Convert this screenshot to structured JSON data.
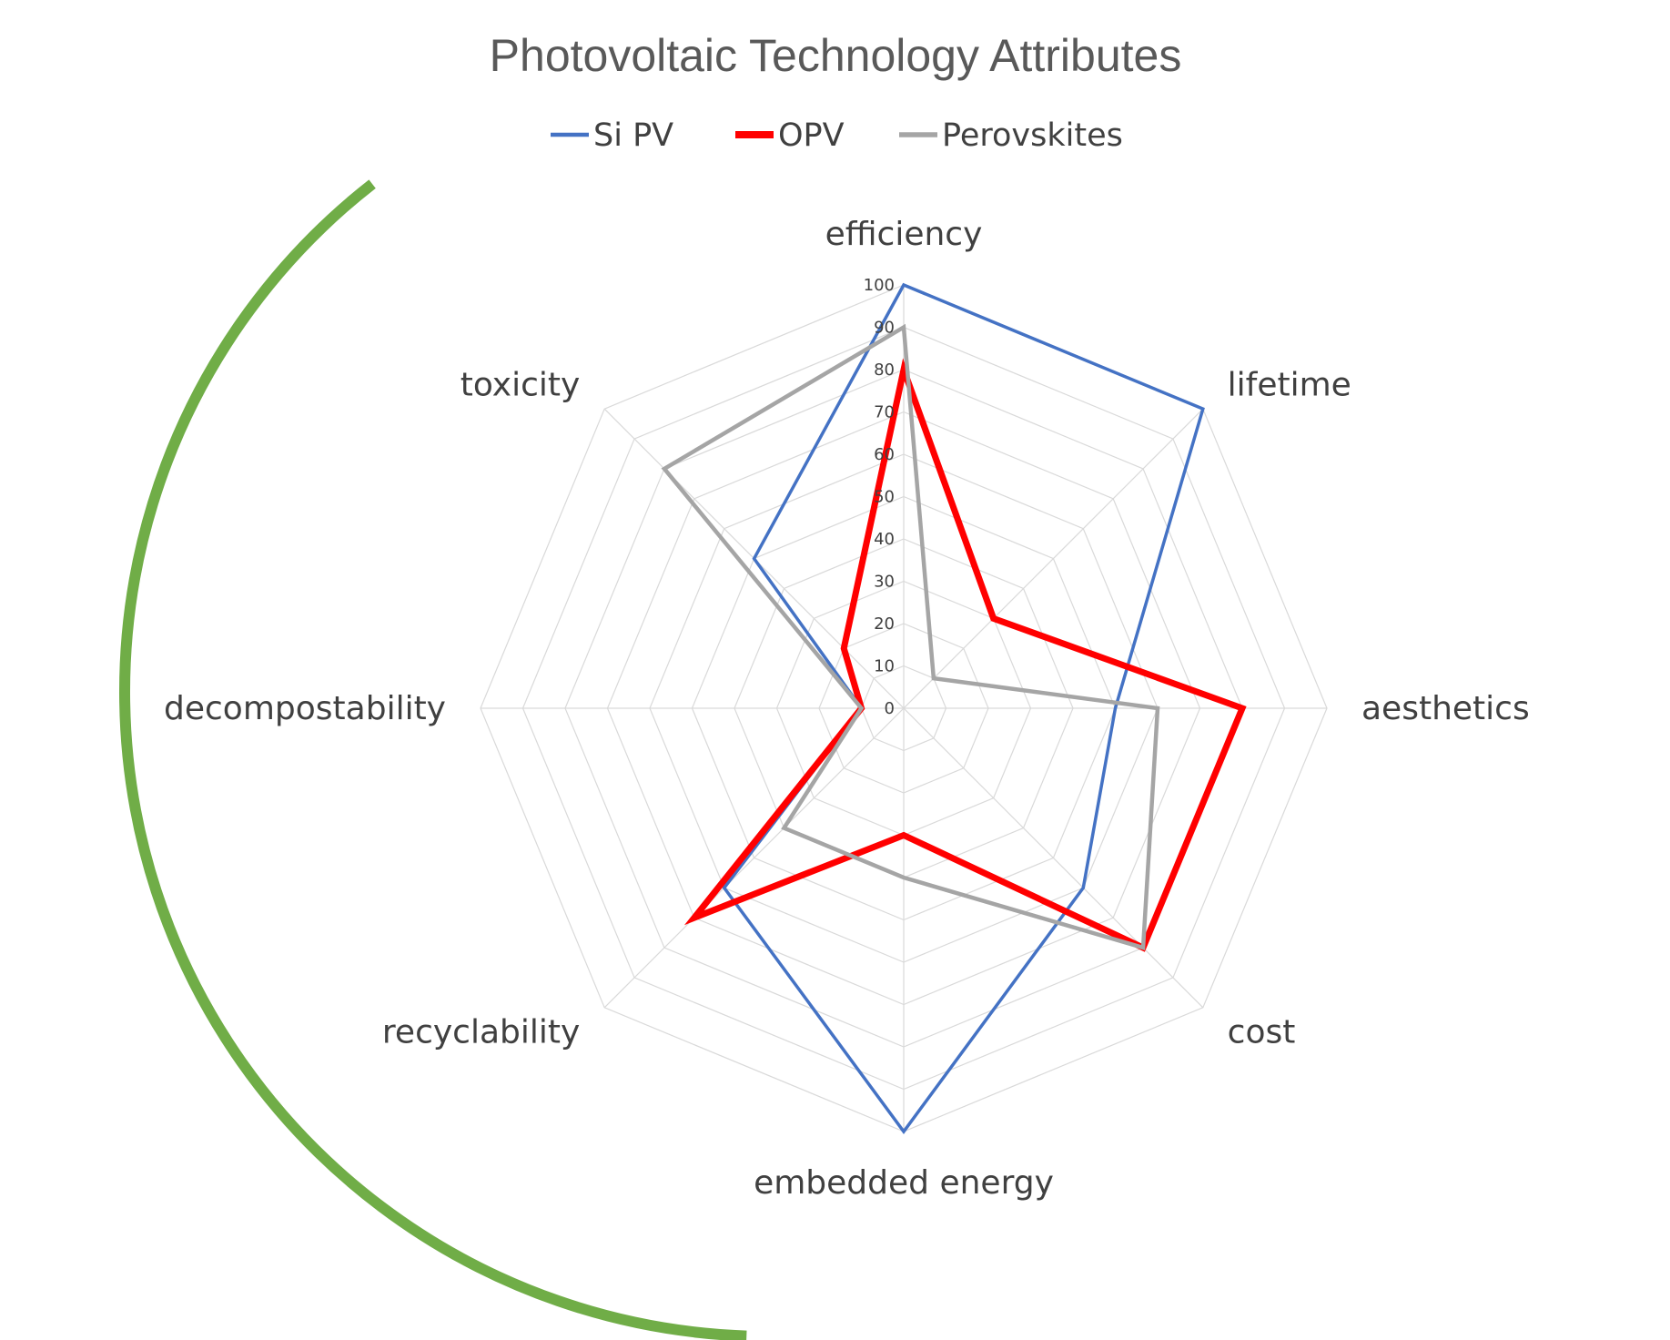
{
  "chart_data": {
    "type": "radar",
    "title": "Photovoltaic Technology Attributes",
    "categories": [
      "efficiency",
      "lifetime",
      "aesthetics",
      "cost",
      "embedded energy",
      "recyclability",
      "decompostability",
      "toxicity"
    ],
    "radial_ticks": [
      "0",
      "10",
      "20",
      "30",
      "40",
      "50",
      "60",
      "70",
      "80",
      "90",
      "100"
    ],
    "rlim": [
      0,
      100
    ],
    "legend_position": "top",
    "grid": true,
    "series": [
      {
        "name": "Si PV",
        "color": "#4472c4",
        "values": [
          100,
          100,
          50,
          60,
          100,
          60,
          10,
          50
        ]
      },
      {
        "name": "OPV",
        "color": "#ff0000",
        "values": [
          80,
          30,
          80,
          80,
          30,
          70,
          10,
          20
        ]
      },
      {
        "name": "Perovskites",
        "color": "#a5a5a5",
        "values": [
          90,
          10,
          60,
          80,
          40,
          40,
          10,
          80
        ]
      }
    ],
    "annotation_arc_color": "#70ad47"
  }
}
